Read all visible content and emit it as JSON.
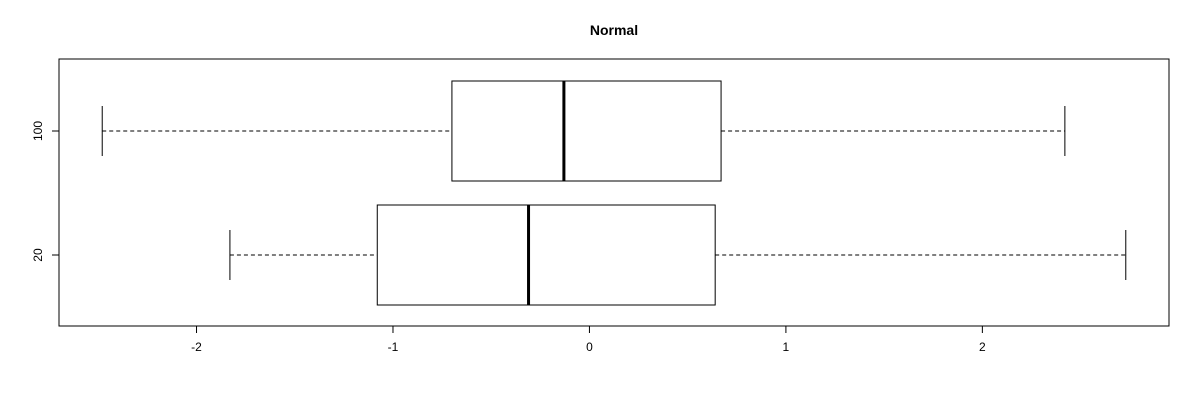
{
  "chart_data": {
    "type": "boxplot",
    "orientation": "horizontal",
    "title": "Normal",
    "xlabel": "",
    "ylabel": "",
    "xlim": [
      -2.7,
      2.95
    ],
    "x_ticks": [
      -2,
      -1,
      0,
      1,
      2
    ],
    "x_tick_labels": [
      "-2",
      "-1",
      "0",
      "1",
      "2"
    ],
    "categories": [
      "100",
      "20"
    ],
    "boxes": [
      {
        "label": "100",
        "min": -2.48,
        "q1": -0.7,
        "median": -0.13,
        "q3": 0.67,
        "max": 2.42
      },
      {
        "label": "20",
        "min": -1.83,
        "q1": -1.08,
        "median": -0.31,
        "q3": 0.64,
        "max": 2.73
      }
    ],
    "grid": false,
    "colors": {
      "box_fill": "#ffffff",
      "stroke": "#000000"
    }
  }
}
